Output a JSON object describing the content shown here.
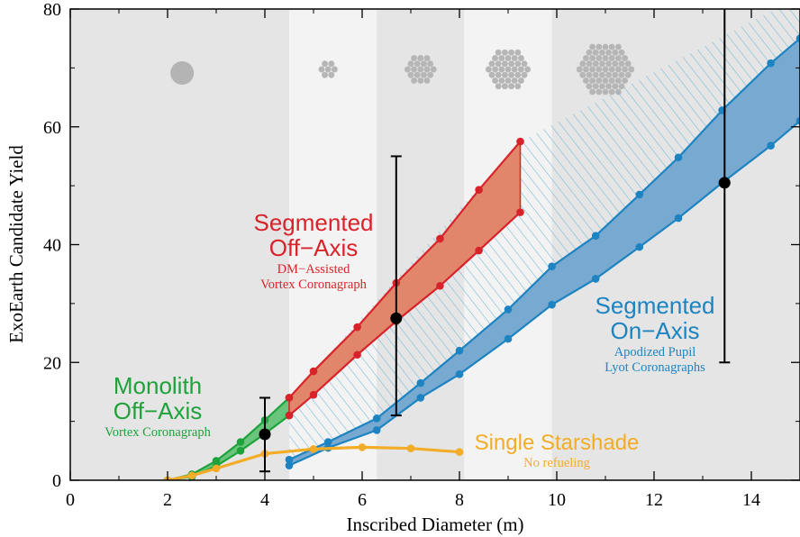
{
  "chart_data": {
    "type": "line",
    "xlabel": "Inscribed Diameter (m)",
    "ylabel": "ExoEarth Candidate Yield",
    "xlim": [
      0,
      15
    ],
    "ylim": [
      0,
      80
    ],
    "x_ticks": [
      "0",
      "2",
      "4",
      "6",
      "8",
      "10",
      "12",
      "14"
    ],
    "y_ticks": [
      "0",
      "20",
      "40",
      "60",
      "80"
    ],
    "grid": false,
    "legend": "none",
    "background_bands": [
      {
        "x": [
          0,
          4.5
        ],
        "shade": "gray"
      },
      {
        "x": [
          4.5,
          6.3
        ],
        "shade": "light"
      },
      {
        "x": [
          6.3,
          8.1
        ],
        "shade": "gray"
      },
      {
        "x": [
          8.1,
          9.9
        ],
        "shade": "light"
      },
      {
        "x": [
          9.9,
          15
        ],
        "shade": "gray"
      }
    ],
    "aperture_icons": [
      {
        "x": 2.3,
        "kind": "monolith"
      },
      {
        "x": 5.3,
        "kind": "segmented"
      },
      {
        "x": 7.2,
        "kind": "segmented"
      },
      {
        "x": 9.0,
        "kind": "segmented"
      },
      {
        "x": 11.0,
        "kind": "segmented"
      }
    ],
    "series": [
      {
        "group": "monolith",
        "color": "#1fa23c",
        "upper": {
          "x": [
            2,
            2.5,
            3,
            3.5,
            4,
            4.5
          ],
          "y": [
            0,
            1,
            3.3,
            6.5,
            10.2,
            14
          ]
        },
        "lower": {
          "x": [
            2,
            2.5,
            3,
            3.5,
            4,
            4.5
          ],
          "y": [
            0,
            0.6,
            2.4,
            5,
            7.9,
            11
          ]
        }
      },
      {
        "group": "segmented_off_axis",
        "color": "#d8232a",
        "upper": {
          "x": [
            4.5,
            5,
            5.9,
            6.7,
            7.6,
            8.4,
            9.25
          ],
          "y": [
            14,
            18.5,
            26,
            33.5,
            41,
            49.3,
            57.5
          ]
        },
        "lower": {
          "x": [
            4.5,
            5,
            5.9,
            6.7,
            7.6,
            8.4,
            9.25
          ],
          "y": [
            11,
            14.5,
            21.3,
            27,
            33,
            39,
            45.5
          ]
        }
      },
      {
        "group": "segmented_on_axis",
        "color": "#1d84c1",
        "upper": {
          "x": [
            4.5,
            5.3,
            6.3,
            7.2,
            8,
            9,
            9.9,
            10.8,
            11.7,
            12.5,
            13.4,
            14.4,
            15
          ],
          "y": [
            3.5,
            6.5,
            10.5,
            16.5,
            22,
            29,
            36.3,
            41.5,
            48.5,
            54.8,
            62.8,
            70.8,
            75
          ]
        },
        "lower": {
          "x": [
            4.5,
            5.3,
            6.3,
            7.2,
            8,
            9,
            9.9,
            10.8,
            11.7,
            12.5,
            13.4,
            14.4,
            15
          ],
          "y": [
            2.5,
            5.5,
            8.5,
            14,
            18,
            24,
            29.8,
            34.2,
            39.6,
            44.5,
            50.5,
            56.8,
            61
          ]
        }
      },
      {
        "group": "single_starshade",
        "color": "#f2ac27",
        "line": {
          "x": [
            2,
            2.5,
            3,
            4,
            5,
            6,
            7,
            8
          ],
          "y": [
            0,
            0.8,
            2,
            4.5,
            5.3,
            5.6,
            5.4,
            4.8
          ]
        }
      }
    ],
    "hatched_region": {
      "lower": {
        "x": [
          4.5,
          5.3,
          6.3,
          7.2,
          8,
          9,
          9.9,
          10.8,
          11.7,
          12.5,
          13.4,
          14.4,
          15
        ],
        "y": [
          3.5,
          6.5,
          10.5,
          16.5,
          22,
          29,
          36.3,
          41.5,
          48.5,
          54.8,
          62.8,
          70.8,
          75
        ]
      },
      "upper": {
        "x": [
          4.5,
          9.25,
          11.7,
          14.5,
          15
        ],
        "y": [
          14,
          57.5,
          68,
          80,
          80
        ]
      }
    },
    "error_bars": [
      {
        "x": 4.0,
        "y": 7.8,
        "low": 1.5,
        "high": 14
      },
      {
        "x": 6.7,
        "y": 27.5,
        "low": 11,
        "high": 55
      },
      {
        "x": 13.45,
        "y": 50.5,
        "low": 20,
        "high": 82
      }
    ],
    "annotations": {
      "monolith": {
        "title1": "Monolith",
        "title2": "Off−Axis",
        "sub1": "Vortex Coronagraph"
      },
      "segmented_off_axis": {
        "title1": "Segmented",
        "title2": "Off−Axis",
        "sub1": "DM−Assisted",
        "sub2": "Vortex Coronagraph"
      },
      "segmented_on_axis": {
        "title1": "Segmented",
        "title2": "On−Axis",
        "sub1": "Apodized Pupil",
        "sub2": "Lyot Coronagraphs"
      },
      "single_starshade": {
        "title1": "Single Starshade",
        "sub1": "No refueling"
      }
    }
  }
}
